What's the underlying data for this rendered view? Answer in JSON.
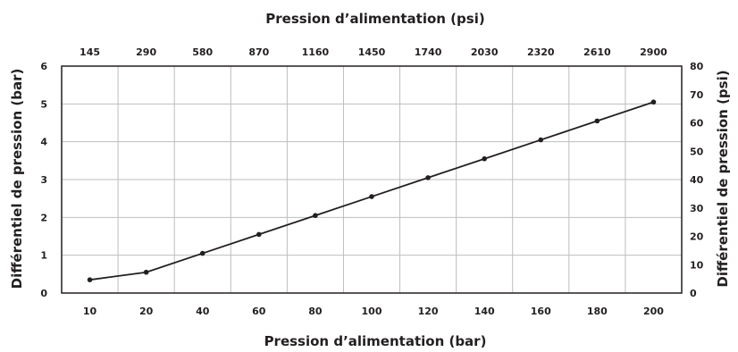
{
  "chart_data": {
    "type": "line",
    "title": "",
    "x_top_label": "Pression d’alimentation (psi)",
    "x_bottom_label": "Pression d’alimentation (bar)",
    "y_left_label": "Différentiel de pression (bar)",
    "y_right_label": "Différentiel de pression (psi)",
    "x_categories": [
      "10",
      "20",
      "40",
      "60",
      "80",
      "100",
      "120",
      "140",
      "160",
      "180",
      "200"
    ],
    "x_top_ticks": [
      "145",
      "290",
      "580",
      "870",
      "1160",
      "1450",
      "1740",
      "2030",
      "2320",
      "2610",
      "2900"
    ],
    "y_left_ticks": [
      "0",
      "1",
      "2",
      "3",
      "4",
      "5",
      "6"
    ],
    "y_right_ticks": [
      "0",
      "10",
      "20",
      "30",
      "40",
      "50",
      "60",
      "70",
      "80"
    ],
    "ylim_left": [
      0,
      6
    ],
    "ylim_right": [
      0,
      80
    ],
    "grid": true,
    "legend": "none",
    "colors": {
      "line": "#231f20",
      "grid": "#bcbec0",
      "frame": "#231f20"
    },
    "series": [
      {
        "values": [
          0.35,
          0.55,
          1.05,
          1.55,
          2.05,
          2.55,
          3.05,
          3.55,
          4.05,
          4.55,
          5.05
        ]
      }
    ]
  }
}
